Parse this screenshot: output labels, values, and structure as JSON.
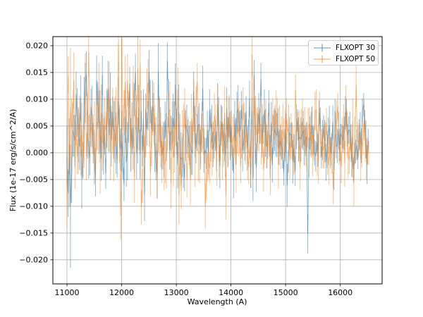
{
  "chart_data": {
    "type": "errorbar",
    "title": "",
    "xlabel": "Wavelength (A)",
    "ylabel": "Flux (1e-17 erg/s/cm^2/A)",
    "xlim": [
      10742,
      16765
    ],
    "ylim": [
      -0.0245,
      0.0217
    ],
    "grid": true,
    "grid_color": "#b0b0b0",
    "spine_color": "#000000",
    "xticks": {
      "values": [
        11000,
        12000,
        13000,
        14000,
        15000,
        16000
      ],
      "labels": [
        "11000",
        "12000",
        "13000",
        "14000",
        "15000",
        "16000"
      ]
    },
    "yticks": {
      "values": [
        0.02,
        0.015,
        0.01,
        0.005,
        0.0,
        -0.005,
        -0.01,
        -0.015,
        -0.02
      ],
      "labels": [
        "0.020",
        "0.015",
        "0.010",
        "0.005",
        "0.000",
        "−0.005",
        "−0.010",
        "−0.015",
        "−0.020"
      ]
    },
    "legend": {
      "location": "upper right",
      "border_color": "#cccccc",
      "background": "#ffffff"
    },
    "series": [
      {
        "name": "FLXOPT 30",
        "color": "#1f77b4",
        "alpha": 0.5,
        "seed": 11,
        "x_start": 11000,
        "x_end": 16510,
        "n_points": 265,
        "mean_start": 0.0038,
        "mean_end": 0.0018,
        "sigma_start": 0.005,
        "sigma_end": 0.0023,
        "yerr_start": 0.0046,
        "yerr_end": 0.0027,
        "spikes": [
          {
            "x": 11055,
            "lo": -0.0215,
            "e": 0.0115
          },
          {
            "x": 11330,
            "hi": 0.0168
          },
          {
            "x": 11760,
            "hi": 0.0172
          },
          {
            "x": 12260,
            "hi": 0.0185
          },
          {
            "x": 12510,
            "hi": 0.0192
          },
          {
            "x": 12660,
            "hi": 0.0205
          },
          {
            "x": 12980,
            "hi": 0.0167
          },
          {
            "x": 13490,
            "hi": 0.0163
          }
        ]
      },
      {
        "name": "FLXOPT 50",
        "color": "#ff7f0e",
        "alpha": 0.5,
        "seed": 47,
        "x_start": 11000,
        "x_end": 16520,
        "n_points": 265,
        "mean_start": 0.004,
        "mean_end": 0.0018,
        "sigma_start": 0.0055,
        "sigma_end": 0.0027,
        "yerr_start": 0.005,
        "yerr_end": 0.0032,
        "spikes": [
          {
            "x": 11065,
            "hi": 0.0196,
            "e": 0.011
          },
          {
            "x": 11990,
            "lo": -0.0163
          },
          {
            "x": 12060,
            "hi": 0.0182
          },
          {
            "x": 12480,
            "hi": 0.0175
          },
          {
            "x": 13380,
            "hi": 0.0168
          },
          {
            "x": 13750,
            "hi": 0.0126
          },
          {
            "x": 13900,
            "lo": -0.0125
          },
          {
            "x": 14160,
            "hi": 0.0096
          },
          {
            "x": 14770,
            "hi": 0.0102
          }
        ]
      }
    ]
  }
}
